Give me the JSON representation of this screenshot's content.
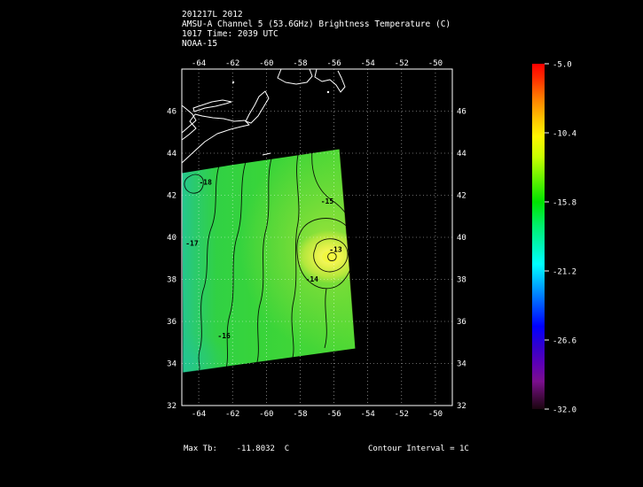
{
  "header": {
    "line1": "201217L 2012",
    "line2": "AMSU-A Channel 5 (53.6GHz) Brightness Temperature (C)",
    "line3": "1017 Time: 2039 UTC",
    "line4": "NOAA-15"
  },
  "footer": {
    "max_tb": "Max Tb:    -11.8032  C",
    "contour_interval": "Contour Interval = 1C"
  },
  "chart_data": {
    "type": "heatmap",
    "subtype": "satellite-swath-filled-contour-map",
    "title": "AMSU-A Channel 5 (53.6GHz) Brightness Temperature (C)",
    "date_label": "201217L 2012",
    "time_label": "1017 Time: 2039 UTC",
    "satellite": "NOAA-15",
    "units": "C",
    "grid": true,
    "plot_bg": "#000000",
    "x_axis": {
      "name": "longitude",
      "range": [
        -65,
        -49
      ],
      "ticks": [
        "-64",
        "-62",
        "-60",
        "-58",
        "-56",
        "-54",
        "-52",
        "-50"
      ]
    },
    "y_axis": {
      "name": "latitude",
      "range": [
        32,
        48
      ],
      "ticks": [
        "46",
        "44",
        "42",
        "40",
        "38",
        "36",
        "34",
        "32"
      ]
    },
    "colorbar": {
      "max_c": -5.0,
      "min_c": -32.0,
      "tick_labels": [
        "-5.0",
        "-10.4",
        "-15.8",
        "-21.2",
        "-26.6",
        "-32.0"
      ],
      "colors_top_to_bottom": [
        "#ff0000",
        "#ff7e00",
        "#fff600",
        "#00e400",
        "#00ffff",
        "#0055ff",
        "#3300cc",
        "#7a0f8e",
        "#1a050f"
      ]
    },
    "max_tb_c": -11.8032,
    "contour_interval_c": 1,
    "contour_labels": [
      {
        "value": "-18",
        "lon": -63.6,
        "lat": 42.5
      },
      {
        "value": "-17",
        "lon": -64.4,
        "lat": 39.6
      },
      {
        "value": "-16",
        "lon": -62.5,
        "lat": 35.2
      },
      {
        "value": "-15",
        "lon": -56.4,
        "lat": 41.6
      },
      {
        "value": "-14",
        "lon": -57.3,
        "lat": 37.9
      },
      {
        "value": "-13",
        "lon": -55.9,
        "lat": 39.3
      }
    ],
    "swath_fill_main": "#38d43a",
    "swath_fill_cold_edge": "#24c690",
    "swath_fill_warm_spot": "#f2f840"
  }
}
